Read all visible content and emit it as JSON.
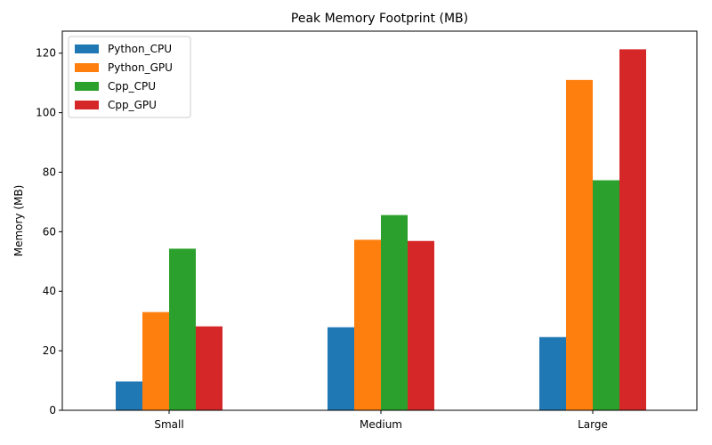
{
  "chart_data": {
    "type": "bar",
    "title": "Peak Memory Footprint (MB)",
    "xlabel": "",
    "ylabel": "Memory (MB)",
    "categories": [
      "Small",
      "Medium",
      "Large"
    ],
    "series": [
      {
        "name": "Python_CPU",
        "color": "#1f77b4",
        "values": [
          9.7,
          27.9,
          24.6
        ]
      },
      {
        "name": "Python_GPU",
        "color": "#ff7f0e",
        "values": [
          33.0,
          57.3,
          111.0
        ]
      },
      {
        "name": "Cpp_CPU",
        "color": "#2ca02c",
        "values": [
          54.3,
          65.6,
          77.3
        ]
      },
      {
        "name": "Cpp_GPU",
        "color": "#d62728",
        "values": [
          28.2,
          56.9,
          121.3
        ]
      }
    ],
    "ylim": [
      0,
      127.4
    ],
    "yticks": [
      0,
      20,
      40,
      60,
      80,
      100,
      120
    ],
    "grid": false,
    "legend_position": "top-left"
  }
}
